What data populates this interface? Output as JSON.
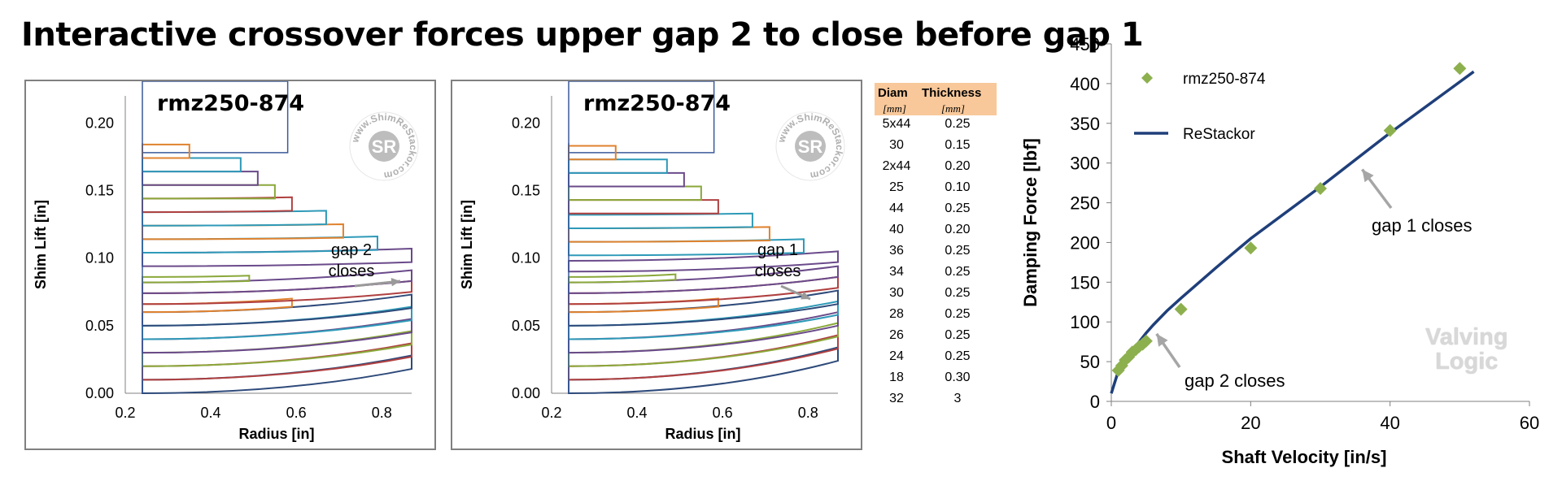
{
  "title": "Interactive crossover forces upper gap 2 to close before gap 1",
  "panels": [
    {
      "label": "rmz250-874",
      "ylabel": "Shim Lift [in]",
      "xlabel": "Radius [in]",
      "annotation": [
        "gap 2",
        "closes"
      ],
      "watermark": {
        "ring": "www.ShimReStackor.com",
        "logo": "SR"
      }
    },
    {
      "label": "rmz250-874",
      "ylabel": "Shim Lift [in]",
      "xlabel": "Radius [in]",
      "annotation": [
        "gap 1",
        "closes"
      ],
      "watermark": {
        "ring": "www.ShimReStackor.com",
        "logo": "SR"
      }
    }
  ],
  "shim_table": {
    "headers": [
      "Diam",
      "Thickness"
    ],
    "units": [
      "[mm]",
      "[mm]"
    ],
    "rows": [
      [
        "5x44",
        "0.25"
      ],
      [
        "30",
        "0.15"
      ],
      [
        "2x44",
        "0.20"
      ],
      [
        "25",
        "0.10"
      ],
      [
        "44",
        "0.25"
      ],
      [
        "40",
        "0.20"
      ],
      [
        "36",
        "0.25"
      ],
      [
        "34",
        "0.25"
      ],
      [
        "30",
        "0.25"
      ],
      [
        "28",
        "0.25"
      ],
      [
        "26",
        "0.25"
      ],
      [
        "24",
        "0.25"
      ],
      [
        "18",
        "0.30"
      ],
      [
        "32",
        "3"
      ]
    ]
  },
  "watermark_valving": [
    "Valving",
    "Logic"
  ],
  "chart_data": [
    {
      "type": "line",
      "title": "",
      "xlabel": "Radius [in]",
      "ylabel": "Shim Lift [in]",
      "xlim": [
        0.2,
        0.87
      ],
      "ylim": [
        0.0,
        0.22
      ],
      "xticks": [
        "0.2",
        "0.4",
        "0.6",
        "0.8"
      ],
      "yticks": [
        "0.00",
        "0.05",
        "0.10",
        "0.15",
        "0.20"
      ],
      "stack_inner_radius": 0.24,
      "shims": [
        {
          "outer_radius": 0.87,
          "lift_inner": 0.0,
          "lift_outer": 0.018,
          "thickness": 0.01,
          "color": "#2e4a7a"
        },
        {
          "outer_radius": 0.87,
          "lift_inner": 0.01,
          "lift_outer": 0.027,
          "thickness": 0.01,
          "color": "#b04040"
        },
        {
          "outer_radius": 0.87,
          "lift_inner": 0.02,
          "lift_outer": 0.036,
          "thickness": 0.01,
          "color": "#8aa83a"
        },
        {
          "outer_radius": 0.87,
          "lift_inner": 0.03,
          "lift_outer": 0.045,
          "thickness": 0.01,
          "color": "#6a4a8a"
        },
        {
          "outer_radius": 0.87,
          "lift_inner": 0.04,
          "lift_outer": 0.054,
          "thickness": 0.01,
          "color": "#2e9ab8"
        },
        {
          "outer_radius": 0.87,
          "lift_inner": 0.05,
          "lift_outer": 0.063,
          "thickness": 0.01,
          "color": "#2e4a7a"
        },
        {
          "outer_radius": 0.59,
          "lift_inner": 0.06,
          "lift_outer": 0.064,
          "thickness": 0.006,
          "color": "#e0822e"
        },
        {
          "outer_radius": 0.87,
          "lift_inner": 0.066,
          "lift_outer": 0.075,
          "thickness": 0.008,
          "color": "#b04040"
        },
        {
          "outer_radius": 0.87,
          "lift_inner": 0.074,
          "lift_outer": 0.083,
          "thickness": 0.008,
          "color": "#6a4a8a"
        },
        {
          "outer_radius": 0.49,
          "lift_inner": 0.082,
          "lift_outer": 0.083,
          "thickness": 0.004,
          "color": "#8aa83a"
        },
        {
          "outer_radius": 0.87,
          "lift_inner": 0.094,
          "lift_outer": 0.097,
          "thickness": 0.01,
          "color": "#6a4a8a"
        },
        {
          "outer_radius": 0.79,
          "lift_inner": 0.104,
          "lift_outer": 0.106,
          "thickness": 0.01,
          "color": "#2e9ab8"
        },
        {
          "outer_radius": 0.71,
          "lift_inner": 0.114,
          "lift_outer": 0.115,
          "thickness": 0.01,
          "color": "#e0822e"
        },
        {
          "outer_radius": 0.67,
          "lift_inner": 0.124,
          "lift_outer": 0.125,
          "thickness": 0.01,
          "color": "#2e9ab8"
        },
        {
          "outer_radius": 0.59,
          "lift_inner": 0.134,
          "lift_outer": 0.135,
          "thickness": 0.01,
          "color": "#b04040"
        },
        {
          "outer_radius": 0.55,
          "lift_inner": 0.144,
          "lift_outer": 0.144,
          "thickness": 0.01,
          "color": "#8aa83a"
        },
        {
          "outer_radius": 0.51,
          "lift_inner": 0.154,
          "lift_outer": 0.154,
          "thickness": 0.01,
          "color": "#6a4a8a"
        },
        {
          "outer_radius": 0.47,
          "lift_inner": 0.164,
          "lift_outer": 0.164,
          "thickness": 0.01,
          "color": "#2e9ab8"
        },
        {
          "outer_radius": 0.35,
          "lift_inner": 0.174,
          "lift_outer": 0.174,
          "thickness": 0.01,
          "color": "#e0822e"
        }
      ]
    },
    {
      "type": "line",
      "title": "",
      "xlabel": "Radius [in]",
      "ylabel": "Shim Lift [in]",
      "xlim": [
        0.2,
        0.87
      ],
      "ylim": [
        0.0,
        0.22
      ],
      "xticks": [
        "0.2",
        "0.4",
        "0.6",
        "0.8"
      ],
      "yticks": [
        "0.00",
        "0.05",
        "0.10",
        "0.15",
        "0.20"
      ],
      "stack_inner_radius": 0.24,
      "shims": [
        {
          "outer_radius": 0.87,
          "lift_inner": 0.0,
          "lift_outer": 0.024,
          "thickness": 0.01,
          "color": "#2e4a7a"
        },
        {
          "outer_radius": 0.87,
          "lift_inner": 0.01,
          "lift_outer": 0.033,
          "thickness": 0.01,
          "color": "#b04040"
        },
        {
          "outer_radius": 0.87,
          "lift_inner": 0.02,
          "lift_outer": 0.042,
          "thickness": 0.01,
          "color": "#8aa83a"
        },
        {
          "outer_radius": 0.87,
          "lift_inner": 0.03,
          "lift_outer": 0.05,
          "thickness": 0.01,
          "color": "#6a4a8a"
        },
        {
          "outer_radius": 0.87,
          "lift_inner": 0.04,
          "lift_outer": 0.058,
          "thickness": 0.01,
          "color": "#2e9ab8"
        },
        {
          "outer_radius": 0.87,
          "lift_inner": 0.05,
          "lift_outer": 0.066,
          "thickness": 0.01,
          "color": "#2e4a7a"
        },
        {
          "outer_radius": 0.59,
          "lift_inner": 0.06,
          "lift_outer": 0.064,
          "thickness": 0.006,
          "color": "#e0822e"
        },
        {
          "outer_radius": 0.87,
          "lift_inner": 0.066,
          "lift_outer": 0.078,
          "thickness": 0.008,
          "color": "#b04040"
        },
        {
          "outer_radius": 0.87,
          "lift_inner": 0.074,
          "lift_outer": 0.086,
          "thickness": 0.008,
          "color": "#6a4a8a"
        },
        {
          "outer_radius": 0.49,
          "lift_inner": 0.082,
          "lift_outer": 0.084,
          "thickness": 0.004,
          "color": "#8aa83a"
        },
        {
          "outer_radius": 0.87,
          "lift_inner": 0.09,
          "lift_outer": 0.097,
          "thickness": 0.008,
          "color": "#6a4a8a"
        },
        {
          "outer_radius": 0.79,
          "lift_inner": 0.102,
          "lift_outer": 0.104,
          "thickness": 0.01,
          "color": "#2e9ab8"
        },
        {
          "outer_radius": 0.71,
          "lift_inner": 0.112,
          "lift_outer": 0.113,
          "thickness": 0.01,
          "color": "#e0822e"
        },
        {
          "outer_radius": 0.67,
          "lift_inner": 0.122,
          "lift_outer": 0.123,
          "thickness": 0.01,
          "color": "#2e9ab8"
        },
        {
          "outer_radius": 0.59,
          "lift_inner": 0.133,
          "lift_outer": 0.133,
          "thickness": 0.01,
          "color": "#b04040"
        },
        {
          "outer_radius": 0.55,
          "lift_inner": 0.143,
          "lift_outer": 0.143,
          "thickness": 0.01,
          "color": "#8aa83a"
        },
        {
          "outer_radius": 0.51,
          "lift_inner": 0.153,
          "lift_outer": 0.153,
          "thickness": 0.01,
          "color": "#6a4a8a"
        },
        {
          "outer_radius": 0.47,
          "lift_inner": 0.163,
          "lift_outer": 0.163,
          "thickness": 0.01,
          "color": "#2e9ab8"
        },
        {
          "outer_radius": 0.35,
          "lift_inner": 0.173,
          "lift_outer": 0.173,
          "thickness": 0.01,
          "color": "#e0822e"
        }
      ]
    },
    {
      "type": "scatter",
      "title": "",
      "xlabel": "Shaft Velocity [in/s]",
      "ylabel": "Damping Force [lbf]",
      "xlim": [
        0,
        60
      ],
      "ylim": [
        0,
        450
      ],
      "xticks": [
        "0",
        "20",
        "40",
        "60"
      ],
      "yticks": [
        "0",
        "50",
        "100",
        "150",
        "200",
        "250",
        "300",
        "350",
        "400",
        "450"
      ],
      "legend": "top-left",
      "series": [
        {
          "name": "rmz250-874",
          "marker": "diamond",
          "color": "#8db04e",
          "x": [
            1,
            1.5,
            2,
            2.5,
            3,
            3.5,
            4,
            4.5,
            5,
            10,
            20,
            30,
            40,
            50
          ],
          "y": [
            39,
            45,
            52,
            56,
            62,
            65,
            69,
            72,
            76,
            116,
            193,
            268,
            341,
            419
          ]
        },
        {
          "name": "ReStackor",
          "marker": "line",
          "color": "#1f3f7a",
          "x": [
            0,
            1,
            2,
            3,
            4,
            5,
            6,
            8,
            10,
            15,
            20,
            30,
            40,
            52
          ],
          "y": [
            10,
            38,
            52,
            64,
            75,
            86,
            96,
            114,
            130,
            168,
            205,
            270,
            338,
            415
          ]
        }
      ],
      "annotations": [
        {
          "text": "gap 1 closes",
          "arrow_to": [
            36,
            292
          ]
        },
        {
          "text": "gap 2 closes",
          "arrow_to": [
            6.5,
            85
          ]
        }
      ]
    }
  ]
}
